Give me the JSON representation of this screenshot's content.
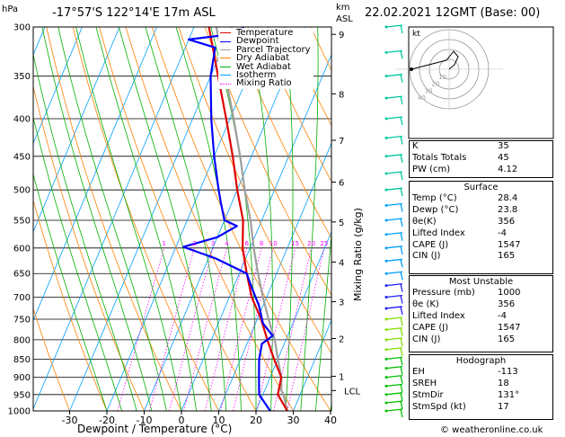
{
  "header": {
    "hpa_label": "hPa",
    "location": "-17°57'S 122°14'E 17m ASL",
    "km_label": "km",
    "asl_label": "ASL",
    "date": "22.02.2021 12GMT (Base: 00)"
  },
  "chart_data": {
    "type": "line",
    "title": "-17°57'S 122°14'E 17m ASL",
    "xlabel": "Dewpoint / Temperature (°C)",
    "ylabel": "hPa",
    "right_axis_label": "Mixing Ratio (g/kg)",
    "x_ticks": [
      -30,
      -20,
      -10,
      0,
      10,
      20,
      30,
      40
    ],
    "pressure_levels": [
      300,
      350,
      400,
      450,
      500,
      550,
      600,
      650,
      700,
      750,
      800,
      850,
      900,
      950,
      1000
    ],
    "km_ticks": [
      {
        "label": "9",
        "p": 307
      },
      {
        "label": "8",
        "p": 370
      },
      {
        "label": "7",
        "p": 428
      },
      {
        "label": "6",
        "p": 488
      },
      {
        "label": "5",
        "p": 553
      },
      {
        "label": "4",
        "p": 627
      },
      {
        "label": "3",
        "p": 710
      },
      {
        "label": "2",
        "p": 797
      },
      {
        "label": "1",
        "p": 897
      }
    ],
    "lcl": {
      "label": "LCL",
      "p": 938
    },
    "mixing_ratio_labels": [
      "1",
      "2",
      "3",
      "4",
      "6",
      "8",
      "10",
      "15",
      "20",
      "25"
    ],
    "legend": [
      {
        "name": "Temperature",
        "color": "#e00000"
      },
      {
        "name": "Dewpoint",
        "color": "#0000ff"
      },
      {
        "name": "Parcel Trajectory",
        "color": "#a0a0a0"
      },
      {
        "name": "Dry Adiabat",
        "color": "#ff8000"
      },
      {
        "name": "Wet Adiabat",
        "color": "#00b000"
      },
      {
        "name": "Isotherm",
        "color": "#00a0ff"
      },
      {
        "name": "Mixing Ratio",
        "color": "#ff00ff"
      }
    ],
    "temperature": [
      [
        28.4,
        1000
      ],
      [
        24,
        950
      ],
      [
        23,
        900
      ],
      [
        19,
        850
      ],
      [
        15,
        800
      ],
      [
        11,
        750
      ],
      [
        6,
        700
      ],
      [
        2,
        650
      ],
      [
        -2,
        600
      ],
      [
        -5,
        550
      ],
      [
        -10,
        500
      ],
      [
        -15,
        450
      ],
      [
        -21,
        400
      ],
      [
        -28,
        350
      ],
      [
        -36,
        300
      ]
    ],
    "dewpoint": [
      [
        23.8,
        1000
      ],
      [
        19,
        950
      ],
      [
        17,
        900
      ],
      [
        15,
        850
      ],
      [
        14,
        810
      ],
      [
        16,
        790
      ],
      [
        12,
        760
      ],
      [
        9,
        720
      ],
      [
        5,
        680
      ],
      [
        2,
        650
      ],
      [
        -8,
        620
      ],
      [
        -18,
        598
      ],
      [
        -10,
        580
      ],
      [
        -6,
        560
      ],
      [
        -10,
        550
      ],
      [
        -13,
        520
      ],
      [
        -15,
        500
      ],
      [
        -20,
        450
      ],
      [
        -25,
        400
      ],
      [
        -30,
        350
      ],
      [
        -32,
        320
      ],
      [
        -40,
        312
      ],
      [
        -25,
        305
      ],
      [
        -28,
        298
      ]
    ],
    "parcel": [
      [
        28.4,
        1000
      ],
      [
        25.5,
        950
      ],
      [
        24.5,
        938
      ],
      [
        23,
        900
      ],
      [
        20,
        850
      ],
      [
        17,
        800
      ],
      [
        13,
        750
      ],
      [
        9,
        700
      ],
      [
        5,
        650
      ],
      [
        1,
        600
      ],
      [
        -3,
        550
      ],
      [
        -8,
        500
      ],
      [
        -13,
        450
      ],
      [
        -19,
        400
      ],
      [
        -26,
        350
      ],
      [
        -34,
        300
      ]
    ]
  },
  "stats": [
    {
      "label": "K",
      "value": "35"
    },
    {
      "label": "Totals Totals",
      "value": "45"
    },
    {
      "label": "PW (cm)",
      "value": "4.12"
    }
  ],
  "surface": {
    "title": "Surface",
    "rows": [
      {
        "label": "Temp (°C)",
        "value": "28.4"
      },
      {
        "label": "Dewp (°C)",
        "value": "23.8"
      },
      {
        "label": "θe(K)",
        "value": "356"
      },
      {
        "label": "Lifted Index",
        "value": "-4"
      },
      {
        "label": "CAPE (J)",
        "value": "1547"
      },
      {
        "label": "CIN (J)",
        "value": "165"
      }
    ]
  },
  "most_unstable": {
    "title": "Most Unstable",
    "rows": [
      {
        "label": "Pressure (mb)",
        "value": "1000"
      },
      {
        "label": "θe (K)",
        "value": "356"
      },
      {
        "label": "Lifted Index",
        "value": "-4"
      },
      {
        "label": "CAPE (J)",
        "value": "1547"
      },
      {
        "label": "CIN (J)",
        "value": "165"
      }
    ]
  },
  "hodograph_table": {
    "title": "Hodograph",
    "rows": [
      {
        "label": "EH",
        "value": "-113"
      },
      {
        "label": "SREH",
        "value": "18"
      },
      {
        "label": "StmDir",
        "value": "131°"
      },
      {
        "label": "StmSpd (kt)",
        "value": "17"
      }
    ]
  },
  "hodograph": {
    "label": "kt",
    "ring_labels": [
      "10",
      "20",
      "30",
      "40"
    ]
  },
  "footer": "© weatheronline.co.uk"
}
